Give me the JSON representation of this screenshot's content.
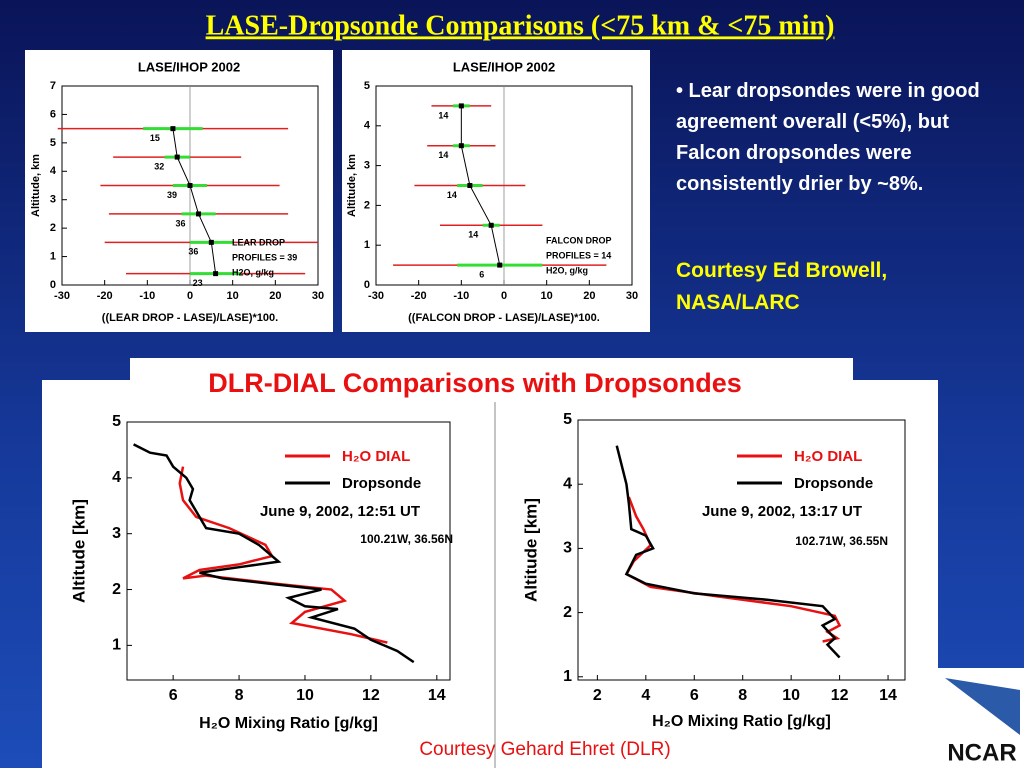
{
  "slide": {
    "title": "LASE-Dropsonde Comparisons (<75 km & <75 min)",
    "bullet": "• Lear dropsondes were in good agreement overall (<5%), but Falcon dropsondes were consistently drier by ~8%.",
    "courtesy_top": "Courtesy Ed Browell, NASA/LARC",
    "section_title": "DLR-DIAL Comparisons with Dropsondes",
    "courtesy_bottom": "Courtesy Gehard Ehret (DLR)",
    "logo": "NCAR"
  },
  "chart_data": [
    {
      "type": "errorbar",
      "title": "LASE/IHOP 2002",
      "xlabel": "((LEAR DROP - LASE)/LASE)*100.",
      "ylabel": "Altitude, km",
      "xlim": [
        -30,
        30
      ],
      "xticks": [
        -30,
        -20,
        -10,
        0,
        10,
        20,
        30
      ],
      "ylim": [
        0,
        7
      ],
      "yticks": [
        0,
        1,
        2,
        3,
        4,
        5,
        6,
        7
      ],
      "x": [
        -4,
        -3,
        0,
        2,
        5,
        6
      ],
      "y": [
        5.5,
        4.5,
        3.5,
        2.5,
        1.5,
        0.4
      ],
      "errors": [
        27,
        15,
        21,
        21,
        25,
        21
      ],
      "spread": [
        7,
        3,
        4,
        4,
        5,
        6
      ],
      "counts": [
        15,
        32,
        39,
        36,
        36,
        23
      ],
      "color": "#000000",
      "error_color": "#e02020",
      "spread_color": "#33dd33",
      "annotations": [
        "LEAR DROP",
        "PROFILES  =  39",
        "H2O, g/kg"
      ]
    },
    {
      "type": "errorbar",
      "title": "LASE/IHOP 2002",
      "xlabel": "((FALCON DROP - LASE)/LASE)*100.",
      "ylabel": "Altitude, km",
      "xlim": [
        -30,
        30
      ],
      "xticks": [
        -30,
        -20,
        -10,
        0,
        10,
        20,
        30
      ],
      "ylim": [
        0,
        5
      ],
      "yticks": [
        0,
        1,
        2,
        3,
        4,
        5
      ],
      "x": [
        -10,
        -10,
        -8,
        -3,
        -1
      ],
      "y": [
        4.5,
        3.5,
        2.5,
        1.5,
        0.5
      ],
      "errors": [
        7,
        8,
        13,
        12,
        25
      ],
      "spread": [
        2,
        2,
        3,
        2,
        10
      ],
      "counts": [
        14,
        14,
        14,
        14,
        6
      ],
      "color": "#000000",
      "error_color": "#e02020",
      "spread_color": "#33dd33",
      "annotations": [
        "FALCON DROP",
        "PROFILES  =  14",
        "H2O, g/kg"
      ]
    },
    {
      "type": "line",
      "xlabel": "H₂O Mixing Ratio [g/kg]",
      "ylabel": "Altitude [km]",
      "xlim": [
        4.6,
        14.4
      ],
      "xticks": [
        6,
        8,
        10,
        12,
        14
      ],
      "ylim": [
        0.38,
        5
      ],
      "yticks": [
        1,
        2,
        3,
        4,
        5
      ],
      "annotations": [
        "June 9, 2002, 12:51 UT",
        "100.21W, 36.56N"
      ],
      "series": [
        {
          "name": "H₂O DIAL",
          "color": "#e81010",
          "x": [
            6.3,
            6.2,
            6.3,
            6.7,
            7.7,
            8.8,
            9.0,
            8.0,
            6.8,
            6.3,
            7.0,
            9.2,
            10.8,
            11.2,
            10.0,
            9.6,
            11.4,
            12.5
          ],
          "y": [
            4.2,
            3.9,
            3.6,
            3.3,
            3.1,
            2.8,
            2.6,
            2.45,
            2.35,
            2.2,
            2.25,
            2.1,
            2.0,
            1.8,
            1.6,
            1.4,
            1.2,
            1.05
          ]
        },
        {
          "name": "Dropsonde",
          "color": "#000000",
          "x": [
            4.8,
            5.3,
            5.8,
            6.0,
            6.4,
            6.6,
            6.5,
            6.8,
            7.0,
            8.0,
            8.6,
            9.2,
            8.0,
            6.8,
            7.5,
            9.0,
            10.5,
            9.5,
            10.0,
            11.0,
            10.2,
            11.5,
            12.0,
            12.8,
            13.3
          ],
          "y": [
            4.6,
            4.45,
            4.4,
            4.2,
            4.0,
            3.8,
            3.6,
            3.3,
            3.1,
            3.0,
            2.8,
            2.5,
            2.4,
            2.3,
            2.2,
            2.1,
            2.0,
            1.85,
            1.7,
            1.65,
            1.5,
            1.3,
            1.1,
            0.9,
            0.7
          ]
        }
      ]
    },
    {
      "type": "line",
      "xlabel": "H₂O Mixing Ratio [g/kg]",
      "ylabel": "Altitude [km]",
      "xlim": [
        1.2,
        14.7
      ],
      "xticks": [
        2,
        4,
        6,
        8,
        10,
        12,
        14
      ],
      "ylim": [
        0.95,
        5
      ],
      "yticks": [
        1,
        2,
        3,
        4,
        5
      ],
      "annotations": [
        "June 9, 2002, 13:17 UT",
        "102.71W, 36.55N"
      ],
      "series": [
        {
          "name": "H₂O DIAL",
          "color": "#e81010",
          "x": [
            3.3,
            3.6,
            3.9,
            4.2,
            3.5,
            3.2,
            4.2,
            7.0,
            10.0,
            11.8,
            12.0,
            11.5,
            11.9,
            11.3
          ],
          "y": [
            3.8,
            3.5,
            3.3,
            3.05,
            2.8,
            2.6,
            2.4,
            2.25,
            2.1,
            1.95,
            1.8,
            1.7,
            1.6,
            1.55
          ]
        },
        {
          "name": "Dropsonde",
          "color": "#000000",
          "x": [
            2.8,
            3.0,
            3.2,
            3.3,
            3.4,
            4.0,
            4.3,
            3.6,
            3.2,
            4.0,
            6.0,
            9.0,
            11.3,
            11.8,
            11.3,
            11.8,
            11.5,
            12.0
          ],
          "y": [
            4.6,
            4.3,
            4.0,
            3.7,
            3.3,
            3.2,
            3.0,
            2.9,
            2.6,
            2.45,
            2.3,
            2.2,
            2.1,
            1.9,
            1.8,
            1.6,
            1.5,
            1.3
          ]
        }
      ]
    }
  ]
}
